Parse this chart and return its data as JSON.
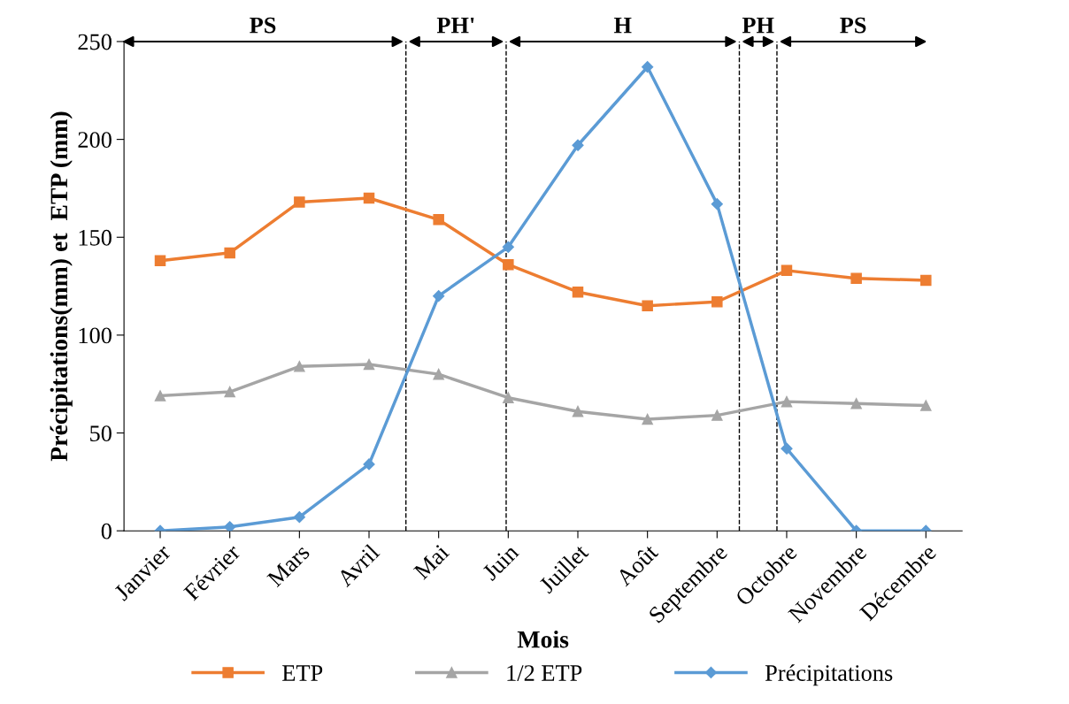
{
  "chart_data": {
    "type": "line",
    "xlabel": "Mois",
    "ylabel": "Précipitations(mm) et  ETP (mm)",
    "categories": [
      "Janvier",
      "Février",
      "Mars",
      "Avril",
      "Mai",
      "Juin",
      "Juillet",
      "Août",
      "Septembre",
      "Octobre",
      "Novembre",
      "Décembre"
    ],
    "series": [
      {
        "name": "ETP",
        "color": "#ed7d31",
        "marker": "square",
        "values": [
          138,
          142,
          168,
          170,
          159,
          136,
          122,
          115,
          117,
          133,
          129,
          128
        ]
      },
      {
        "name": "1/2 ETP",
        "color": "#a5a5a5",
        "marker": "triangle",
        "values": [
          69,
          71,
          84,
          85,
          80,
          68,
          61,
          57,
          59,
          66,
          65,
          64
        ]
      },
      {
        "name": "Précipitations",
        "color": "#5b9bd5",
        "marker": "diamond",
        "values": [
          0,
          2,
          7,
          34,
          120,
          145,
          197,
          237,
          167,
          42,
          0,
          0
        ]
      }
    ],
    "ylim": [
      0,
      250
    ],
    "yticks": [
      0,
      50,
      100,
      150,
      200,
      250
    ],
    "legend": "bottom",
    "line_style": "solid",
    "annotations": [
      "PS",
      "PH'",
      "H",
      "PH",
      "PS"
    ]
  }
}
